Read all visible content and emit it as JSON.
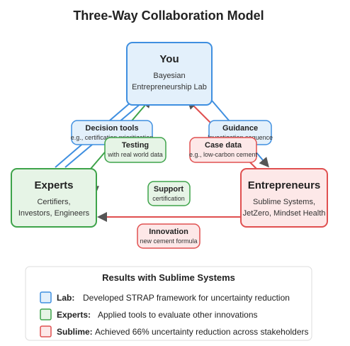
{
  "title": "Three-Way Collaboration Model",
  "colors": {
    "blue_fill": "#e3f0fb",
    "blue_stroke": "#3f8fe0",
    "green_fill": "#e6f4e6",
    "green_stroke": "#3ea34a",
    "red_fill": "#fde8e8",
    "red_stroke": "#e05050",
    "arrow_head": "#555555"
  },
  "nodes": {
    "you": {
      "title": "You",
      "line1": "Bayesian",
      "line2": "Entrepreneurship Lab"
    },
    "experts": {
      "title": "Experts",
      "line1": "Certifiers,",
      "line2": "Investors, Engineers"
    },
    "entrepreneurs": {
      "title": "Entrepreneurs",
      "line1": "Sublime Systems,",
      "line2": "JetZero, Mindset Health"
    }
  },
  "edge_labels": {
    "decision_tools": {
      "title": "Decision tools",
      "sub": "e.g., certification prioritization"
    },
    "testing": {
      "title": "Testing",
      "sub": "with real world data"
    },
    "guidance": {
      "title": "Guidance",
      "sub": "Investigation sequence"
    },
    "case_data": {
      "title": "Case data",
      "sub": "e.g., low-carbon cement"
    },
    "support": {
      "title": "Support",
      "sub": "certification"
    },
    "innovation": {
      "title": "Innovation",
      "sub": "new cement formula"
    }
  },
  "legend": {
    "title": "Results with Sublime Systems",
    "items": [
      {
        "label": "Lab:",
        "text": "Developed STRAP framework for uncertainty reduction"
      },
      {
        "label": "Experts:",
        "text": "Applied tools to evaluate other innovations"
      },
      {
        "label": "Sublime:",
        "text": "Achieved 66% uncertainty reduction across stakeholders"
      }
    ]
  }
}
